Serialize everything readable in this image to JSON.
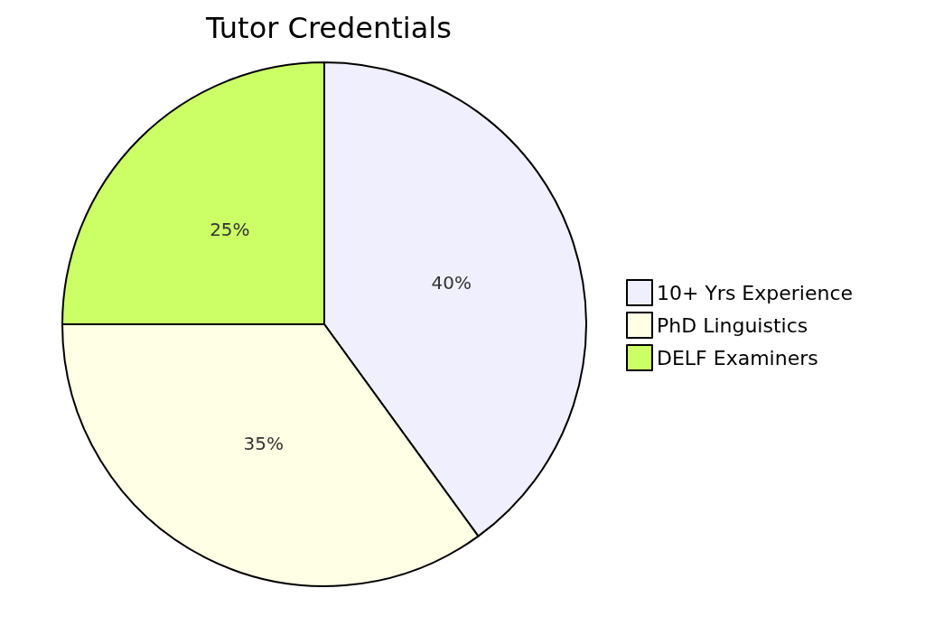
{
  "chart_data": {
    "type": "pie",
    "title": "Tutor Credentials",
    "categories": [
      "10+ Yrs Experience",
      "PhD Linguistics",
      "DELF Examiners"
    ],
    "values": [
      40,
      35,
      25
    ],
    "colors": [
      "#efeffd",
      "#ffffe5",
      "#ccff66"
    ],
    "value_labels": [
      "40%",
      "35%",
      "25%"
    ],
    "legend": "right"
  }
}
